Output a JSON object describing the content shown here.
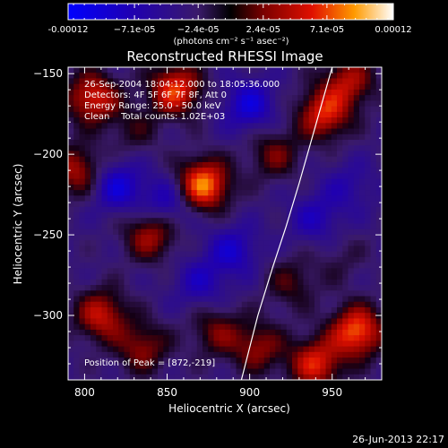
{
  "chart_data": {
    "type": "heatmap",
    "title": "Reconstructed RHESSI Image",
    "xlabel": "Heliocentric X (arcsec)",
    "ylabel": "Heliocentric Y (arcsec)",
    "xlim": [
      790,
      980
    ],
    "ylim": [
      -340,
      -146
    ],
    "x_ticks": [
      800,
      850,
      900,
      950
    ],
    "y_ticks": [
      -150,
      -200,
      -250,
      -300
    ],
    "colorbar": {
      "min": -0.00012,
      "max": 0.00012,
      "tick_labels": [
        "-0.00012",
        "−7.1e-05",
        "−2.4e-05",
        "2.4e-05",
        "7.1e-05",
        "0.00012"
      ],
      "tick_values": [
        -0.00012,
        -7.1e-05,
        -2.4e-05,
        2.4e-05,
        7.1e-05,
        0.00012
      ],
      "unit_label": "(photons cm⁻² s⁻¹ asec⁻²)"
    },
    "info_lines": [
      "26-Sep-2004 18:04:12.000 to 18:05:36.000",
      "Detectors: 4F 5F 6F 7F 8F, Att 0",
      "Energy Range: 25.0 - 50.0 keV",
      "Clean    Total counts: 1.02E+03"
    ],
    "peak_label": "Position of Peak = [872,-219]",
    "peak": [
      872,
      -219
    ],
    "limb_curve": [
      [
        895,
        -340
      ],
      [
        905,
        -300
      ],
      [
        914,
        -270
      ],
      [
        922,
        -245
      ],
      [
        930,
        -218
      ],
      [
        940,
        -182
      ],
      [
        950,
        -146
      ]
    ],
    "features": [
      {
        "x": 872,
        "y": -219,
        "value": 0.00012
      },
      {
        "x": 855,
        "y": -160,
        "value": 0.0001
      },
      {
        "x": 805,
        "y": -165,
        "value": 9e-05
      },
      {
        "x": 795,
        "y": -210,
        "value": 7e-05
      },
      {
        "x": 840,
        "y": -250,
        "value": 7e-05
      },
      {
        "x": 945,
        "y": -175,
        "value": 9e-05
      },
      {
        "x": 960,
        "y": -155,
        "value": 7e-05
      },
      {
        "x": 810,
        "y": -300,
        "value": 8e-05
      },
      {
        "x": 835,
        "y": -320,
        "value": 6e-05
      },
      {
        "x": 965,
        "y": -310,
        "value": 0.00011
      },
      {
        "x": 940,
        "y": -330,
        "value": 9e-05
      },
      {
        "x": 905,
        "y": -320,
        "value": 6e-05
      },
      {
        "x": 880,
        "y": -310,
        "value": 5e-05
      },
      {
        "x": 915,
        "y": -200,
        "value": 5e-05
      },
      {
        "x": 820,
        "y": -220,
        "value": -6e-05
      },
      {
        "x": 850,
        "y": -230,
        "value": -5e-05
      },
      {
        "x": 890,
        "y": -260,
        "value": -5e-05
      },
      {
        "x": 870,
        "y": -280,
        "value": -4e-05
      },
      {
        "x": 900,
        "y": -170,
        "value": -6e-05
      },
      {
        "x": 940,
        "y": -240,
        "value": -4e-05
      },
      {
        "x": 960,
        "y": -220,
        "value": -3e-05
      },
      {
        "x": 830,
        "y": -185,
        "value": 3e-05
      },
      {
        "x": 925,
        "y": -280,
        "value": 4e-05
      },
      {
        "x": 955,
        "y": -265,
        "value": 2e-05
      }
    ]
  },
  "footer": {
    "timestamp": "26-Jun-2013 22:17"
  }
}
